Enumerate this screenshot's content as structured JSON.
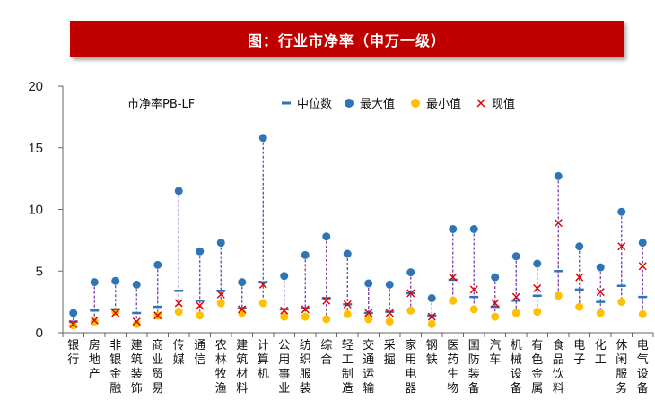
{
  "header": {
    "title": "图：行业市净率（申万一级）"
  },
  "colors": {
    "banner": "#c00000",
    "median": "#2e75b6",
    "max": "#2e75b6",
    "min": "#ffc000",
    "current": "#e00000",
    "range_line": "#7030a0"
  },
  "chart_data": {
    "type": "scatter",
    "title": "市净率PB-LF",
    "ylim": [
      0,
      20
    ],
    "yticks": [
      0,
      5,
      10,
      15,
      20
    ],
    "grid": false,
    "legend_position": "top",
    "legend": [
      {
        "key": "median",
        "label": "中位数",
        "marker": "dash"
      },
      {
        "key": "max",
        "label": "最大值",
        "marker": "circle"
      },
      {
        "key": "min",
        "label": "最小值",
        "marker": "circle"
      },
      {
        "key": "current",
        "label": "现值",
        "marker": "cross"
      }
    ],
    "categories": [
      "银行",
      "房地产",
      "非银金融",
      "建筑装饰",
      "商业贸易",
      "传媒",
      "通信",
      "农林牧渔",
      "建筑材料",
      "计算机",
      "公用事业",
      "纺织服装",
      "综合",
      "轻工制造",
      "交通运输",
      "采掘",
      "家用电器",
      "钢铁",
      "医药生物",
      "国防装备",
      "汽车",
      "机械设备",
      "有色金属",
      "食品饮料",
      "电子",
      "化工",
      "休闲服务",
      "电气设备"
    ],
    "series": [
      {
        "key": "median",
        "values": [
          0.9,
          1.8,
          1.9,
          1.6,
          2.1,
          3.4,
          2.6,
          3.4,
          2.0,
          4.1,
          1.9,
          2.0,
          2.8,
          2.3,
          1.6,
          1.7,
          3.2,
          1.4,
          4.3,
          2.9,
          2.1,
          2.6,
          3.0,
          5.0,
          3.5,
          2.5,
          3.8,
          2.9
        ]
      },
      {
        "key": "max",
        "values": [
          1.6,
          4.1,
          4.2,
          3.9,
          5.5,
          11.5,
          6.6,
          7.3,
          4.1,
          15.8,
          4.6,
          6.3,
          7.8,
          6.4,
          4.0,
          3.9,
          4.9,
          2.8,
          8.4,
          8.4,
          4.5,
          6.2,
          5.6,
          12.7,
          7.0,
          5.3,
          9.8,
          7.3
        ]
      },
      {
        "key": "min",
        "values": [
          0.6,
          0.9,
          1.7,
          0.7,
          1.4,
          1.7,
          1.4,
          2.4,
          1.6,
          2.4,
          1.3,
          1.3,
          1.1,
          1.5,
          1.1,
          0.9,
          1.8,
          0.7,
          2.6,
          1.9,
          1.3,
          1.6,
          1.7,
          3.0,
          2.1,
          1.6,
          2.5,
          1.5
        ]
      },
      {
        "key": "current",
        "values": [
          0.7,
          1.0,
          1.6,
          0.9,
          1.4,
          2.4,
          2.2,
          3.1,
          1.9,
          3.9,
          1.8,
          1.9,
          2.6,
          2.3,
          1.6,
          1.6,
          3.2,
          1.3,
          4.5,
          3.5,
          2.4,
          2.9,
          3.6,
          8.9,
          4.5,
          3.3,
          7.0,
          5.4
        ]
      }
    ]
  }
}
